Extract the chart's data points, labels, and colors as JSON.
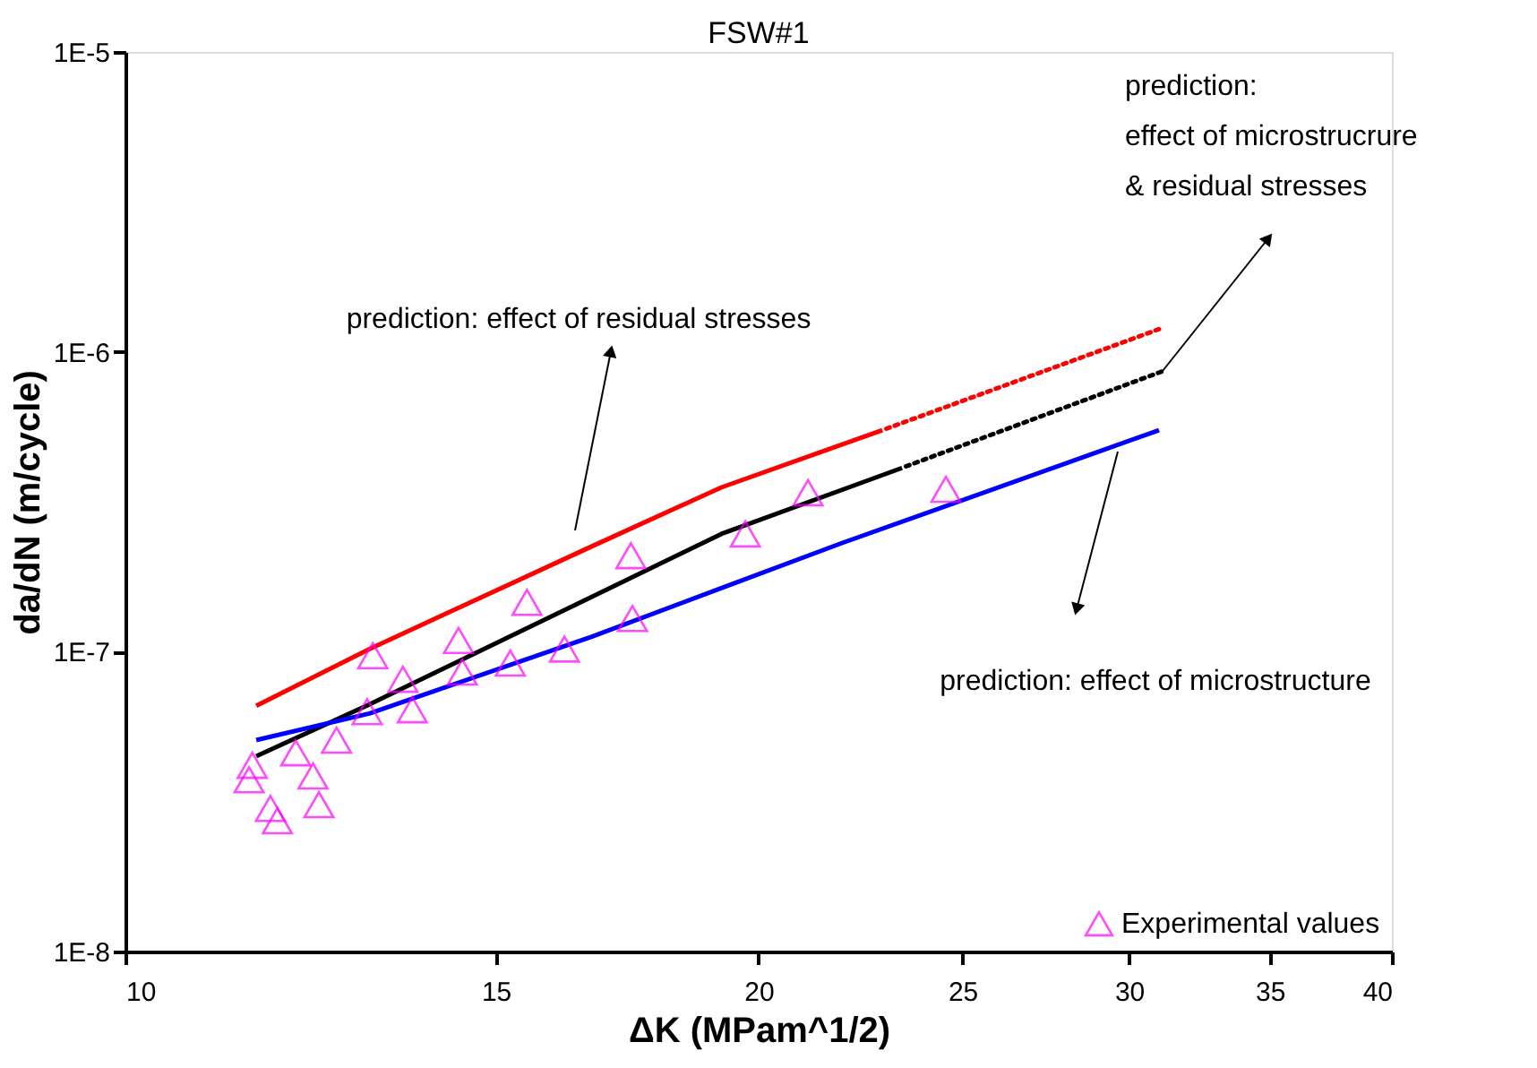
{
  "chart_data": {
    "type": "line",
    "title": "FSW#1",
    "xlabel": "ΔK (MPam^1/2)",
    "ylabel": "da/dN (m/cycle)",
    "log": "xy",
    "xlim": [
      10,
      40
    ],
    "xticks": [
      10,
      15,
      20,
      25,
      30,
      35,
      40
    ],
    "ylim": [
      1e-08,
      1e-05
    ],
    "yticks": [
      {
        "value": 1e-08,
        "label": "1E-8"
      },
      {
        "value": 1e-07,
        "label": "1E-7"
      },
      {
        "value": 1e-06,
        "label": "1E-6"
      },
      {
        "value": 1e-05,
        "label": "1E-5"
      }
    ],
    "grid": false,
    "legend": "bottom right",
    "marker": "none",
    "series": [
      {
        "color": "#ff0000",
        "line_style": "solid",
        "x": [
          11.54,
          13.06,
          16.65,
          19.2,
          22.9
        ],
        "values": [
          6.6e-08,
          1.02e-07,
          2.24e-07,
          3.53e-07,
          5.48e-07
        ]
      },
      {
        "color": "#ff0000",
        "line_style": "dotted",
        "x": [
          23.0,
          31.1
        ],
        "values": [
          5.54e-07,
          1.2e-06
        ]
      },
      {
        "color": "#000000",
        "line_style": "solid",
        "x": [
          11.54,
          13.06,
          16.65,
          19.2,
          23.4
        ],
        "values": [
          4.48e-08,
          6.67e-08,
          1.52e-07,
          2.47e-07,
          4.1e-07
        ]
      },
      {
        "color": "#000000",
        "line_style": "dotted",
        "x": [
          23.5,
          31.1
        ],
        "values": [
          4.15e-07,
          8.6e-07
        ]
      },
      {
        "color": "#0000ff",
        "line_style": "solid",
        "x": [
          11.54,
          13.06,
          16.65,
          19.2,
          21.9,
          31.0
        ],
        "values": [
          5.07e-08,
          6.22e-08,
          1.12e-07,
          1.63e-07,
          2.3e-07,
          5.48e-07
        ]
      },
      {
        "type": "scatter",
        "name": "Experimental values",
        "color": "#ff00ff",
        "marker": "triangle",
        "x": [
          11.49,
          11.45,
          11.72,
          11.81,
          12.05,
          12.28,
          12.36,
          12.6,
          13.11,
          13.03,
          13.55,
          13.69,
          14.4,
          14.46,
          15.24,
          15.52,
          16.17,
          17.39,
          17.42,
          19.71,
          21.11,
          24.55
        ],
        "values": [
          4.18e-08,
          3.74e-08,
          3e-08,
          2.73e-08,
          4.6e-08,
          3.85e-08,
          3.09e-08,
          5.07e-08,
          9.7e-08,
          6.31e-08,
          8.09e-08,
          6.4e-08,
          1.09e-07,
          8.55e-08,
          9.16e-08,
          1.46e-07,
          1.02e-07,
          2.09e-07,
          1.29e-07,
          2.47e-07,
          3.39e-07,
          3.48e-07
        ]
      }
    ],
    "annotations": [
      "prediction: effect of residual stresses",
      "prediction:\neffect of microstrucrure\n& residual stresses",
      "prediction: effect of microstructure"
    ]
  }
}
